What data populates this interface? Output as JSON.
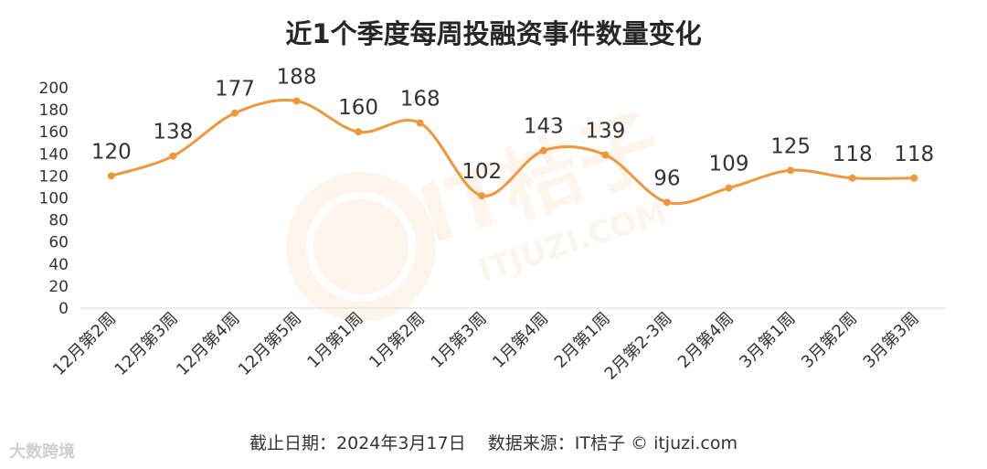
{
  "chart_data": {
    "type": "line",
    "title": "近1个季度每周投融资事件数量变化",
    "categories": [
      "12月第2周",
      "12月第3周",
      "12月第4周",
      "12月第5周",
      "1月第1周",
      "1月第2周",
      "1月第3周",
      "1月第4周",
      "2月第1周",
      "2月第2-3周",
      "2月第4周",
      "3月第1周",
      "3月第2周",
      "3月第3周"
    ],
    "values": [
      120,
      138,
      177,
      188,
      160,
      168,
      102,
      143,
      139,
      96,
      109,
      125,
      118,
      118
    ],
    "ylim": [
      0,
      200
    ],
    "yticks": [
      0,
      20,
      40,
      60,
      80,
      100,
      120,
      140,
      160,
      180,
      200
    ],
    "line_color": "#F0963C",
    "grid": false,
    "legend": "none",
    "smooth": true,
    "data_labels": true
  },
  "footer": {
    "cutoff": "截止日期：2024年3月17日",
    "source": "数据来源：IT桔子 © itjuzi.com"
  },
  "watermark": {
    "brand_cn": "IT桔子",
    "brand_url": "ITJUZI.COM"
  },
  "corner_brand": "大数跨境"
}
